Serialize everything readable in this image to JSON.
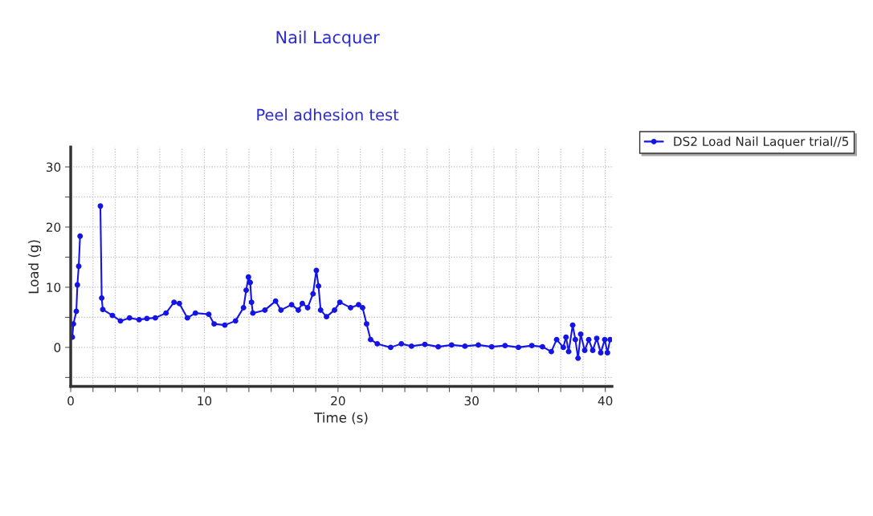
{
  "chart_data": {
    "type": "line",
    "title": "Nail Lacquer",
    "subtitle": "Peel adhesion test",
    "xlabel": "Time (s)",
    "ylabel": "Load (g)",
    "xlim": [
      0,
      40.5
    ],
    "ylim": [
      -6.5,
      33.3
    ],
    "xticks": [
      0,
      {
        "value": 1.667,
        "label": null
      },
      {
        "value": 3.333,
        "label": null
      },
      {
        "value": 5,
        "label": null
      },
      {
        "value": 6.667,
        "label": null
      },
      {
        "value": 8.333,
        "label": null
      },
      10,
      {
        "value": 11.667,
        "label": null
      },
      {
        "value": 13.333,
        "label": null
      },
      {
        "value": 15,
        "label": null
      },
      {
        "value": 16.667,
        "label": null
      },
      {
        "value": 18.333,
        "label": null
      },
      20,
      {
        "value": 21.667,
        "label": null
      },
      {
        "value": 23.333,
        "label": null
      },
      {
        "value": 25,
        "label": null
      },
      {
        "value": 26.667,
        "label": null
      },
      {
        "value": 28.333,
        "label": null
      },
      30,
      {
        "value": 31.667,
        "label": null
      },
      {
        "value": 33.333,
        "label": null
      },
      {
        "value": 35,
        "label": null
      },
      {
        "value": 36.667,
        "label": null
      },
      {
        "value": 38.333,
        "label": null
      },
      40
    ],
    "yticks": [
      {
        "value": -5,
        "label": null
      },
      0,
      {
        "value": 5,
        "label": null
      },
      10,
      {
        "value": 15,
        "label": null
      },
      20,
      {
        "value": 25,
        "label": null
      },
      30
    ],
    "grid": true,
    "legend": "top right",
    "marker": "circle",
    "line_style": "solid",
    "series": [
      {
        "name": "DS2 Load Nail Laquer trial//5",
        "color": "#1414e6",
        "x": [
          0.12,
          0.2,
          0.42,
          0.5,
          0.6,
          0.7,
          0.8,
          2.12,
          2.22,
          2.32,
          2.4,
          3.12,
          3.72,
          4.4,
          5.12,
          5.7,
          6.33,
          7.13,
          7.73,
          8.13,
          8.73,
          9.33,
          10.33,
          10.73,
          11.53,
          12.33,
          12.93,
          13.13,
          13.3,
          13.43,
          13.53,
          13.63,
          14.53,
          15.33,
          15.73,
          16.53,
          17.03,
          17.33,
          17.73,
          18.13,
          18.38,
          18.54,
          18.7,
          19.14,
          19.74,
          20.14,
          20.94,
          21.54,
          21.84,
          22.14,
          22.44,
          22.94,
          23.94,
          24.74,
          25.5,
          26.5,
          27.5,
          28.5,
          29.5,
          30.5,
          31.5,
          32.5,
          33.5,
          34.5,
          35.3,
          35.96,
          36.36,
          36.86,
          37.06,
          37.26,
          37.56,
          37.76,
          37.96,
          38.16,
          38.46,
          38.76,
          39.06,
          39.36,
          39.66,
          39.96,
          40.16,
          40.36
        ],
        "values": [
          1.7,
          3.9,
          6.0,
          10.4,
          13.5,
          18.5,
          null,
          null,
          23.5,
          8.2,
          6.3,
          5.3,
          4.4,
          4.9,
          4.6,
          4.8,
          4.9,
          5.7,
          7.5,
          7.3,
          4.9,
          5.7,
          5.5,
          3.9,
          3.7,
          4.4,
          6.6,
          9.5,
          11.7,
          10.8,
          7.5,
          5.7,
          6.2,
          7.7,
          6.2,
          7.1,
          6.2,
          7.3,
          6.6,
          8.9,
          12.8,
          10.2,
          6.2,
          5.1,
          6.2,
          7.5,
          6.6,
          7.1,
          6.6,
          3.9,
          1.3,
          0.6,
          0,
          0.6,
          0.2,
          0.5,
          0.1,
          0.4,
          0.2,
          0.4,
          0.1,
          0.3,
          0.0,
          0.3,
          0.1,
          -0.7,
          1.3,
          0,
          1.7,
          -0.7,
          3.7,
          1.3,
          -1.8,
          2.2,
          -0.5,
          1.3,
          -0.5,
          1.5,
          -0.9,
          1.3,
          -0.9,
          1.3
        ]
      }
    ]
  }
}
